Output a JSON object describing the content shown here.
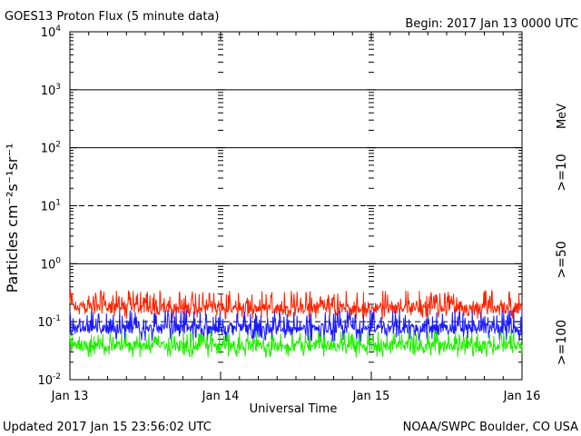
{
  "header": {
    "title": "GOES13 Proton Flux (5 minute data)",
    "begin": "Begin: 2017 Jan 13 0000 UTC"
  },
  "footer": {
    "updated": "Updated 2017 Jan 15 23:56:02 UTC",
    "credit": "NOAA/SWPC Boulder, CO USA"
  },
  "legend": {
    "unit": "MeV",
    "items": [
      {
        "label": ">=10",
        "color": "#ff2200"
      },
      {
        "label": ">=50",
        "color": "#1a1aff"
      },
      {
        "label": ">=100",
        "color": "#22ee00"
      }
    ]
  },
  "chart_data": {
    "type": "line",
    "xlabel": "Universal Time",
    "ylabel": "Particles cm⁻²s⁻¹sr⁻¹",
    "y_scale": "log",
    "ylim": [
      0.01,
      10000
    ],
    "y_ticks": [
      {
        "value": 0.01,
        "base": "10",
        "exp": "-2"
      },
      {
        "value": 0.1,
        "base": "10",
        "exp": "-1"
      },
      {
        "value": 1,
        "base": "10",
        "exp": "0"
      },
      {
        "value": 10,
        "base": "10",
        "exp": "1"
      },
      {
        "value": 100,
        "base": "10",
        "exp": "2"
      },
      {
        "value": 1000,
        "base": "10",
        "exp": "3"
      },
      {
        "value": 10000,
        "base": "10",
        "exp": "4"
      }
    ],
    "x_ticks": [
      "Jan 13",
      "Jan 14",
      "Jan 15",
      "Jan 16"
    ],
    "xlim_days": [
      0,
      3
    ],
    "dashed_reference_levels": [
      10,
      0.1
    ],
    "series": [
      {
        "name": ">=10 MeV",
        "color": "#ff2200",
        "baseline": 0.17,
        "typical_range": [
          0.11,
          0.35
        ]
      },
      {
        "name": ">=50 MeV",
        "color": "#1a1aff",
        "baseline": 0.075,
        "typical_range": [
          0.045,
          0.16
        ]
      },
      {
        "name": ">=100 MeV",
        "color": "#22ee00",
        "baseline": 0.038,
        "typical_range": [
          0.024,
          0.07
        ]
      }
    ]
  }
}
